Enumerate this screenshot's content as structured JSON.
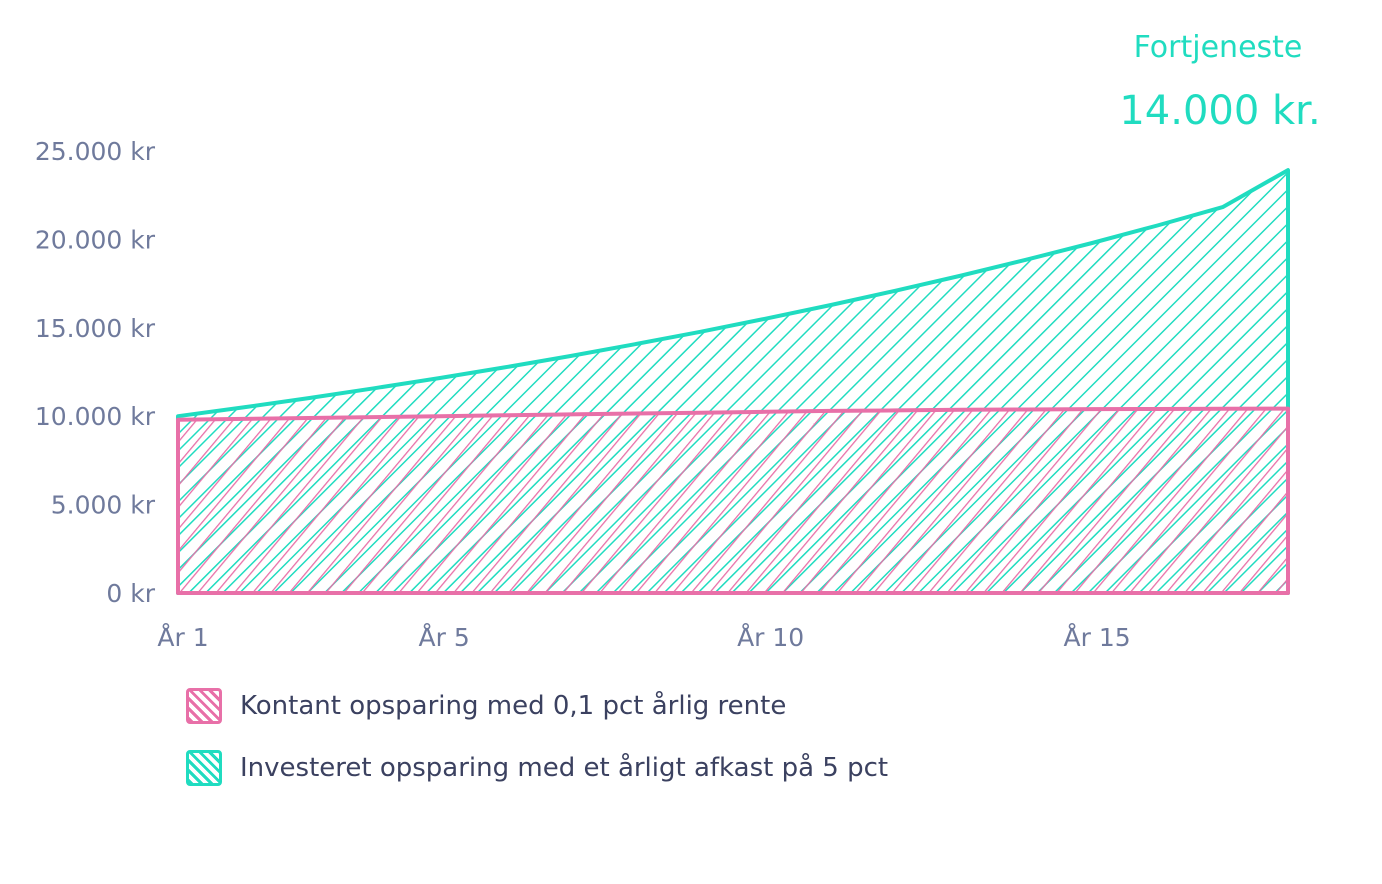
{
  "chart_data": {
    "type": "area",
    "x": [
      1,
      2,
      3,
      4,
      5,
      6,
      7,
      8,
      9,
      10,
      11,
      12,
      13,
      14,
      15,
      16,
      17,
      18
    ],
    "x_tick_labels": [
      {
        "x": 1,
        "label": "År 1"
      },
      {
        "x": 5,
        "label": "År 5"
      },
      {
        "x": 10,
        "label": "År 10"
      },
      {
        "x": 15,
        "label": "År 15"
      }
    ],
    "y_tick_labels": [
      "0 kr",
      "5.000 kr",
      "10.000 kr",
      "15.000 kr",
      "20.000 kr",
      "25.000 kr"
    ],
    "y_ticks": [
      0,
      5000,
      10000,
      15000,
      20000,
      25000
    ],
    "ylim": [
      0,
      25000
    ],
    "series": [
      {
        "name": "Investeret opsparing med et årligt afkast på 5 pct",
        "color": "#20dcc0",
        "values": [
          10000,
          10500,
          11025,
          11576,
          12155,
          12763,
          13401,
          14071,
          14775,
          15513,
          16289,
          17103,
          17959,
          18856,
          19799,
          20789,
          21829,
          23920
        ]
      },
      {
        "name": "Kontant opsparing med 0,1 pct årlig rente",
        "color": "#e870a8",
        "values": [
          9800,
          9850,
          9900,
          9950,
          10000,
          10050,
          10100,
          10150,
          10200,
          10250,
          10300,
          10330,
          10360,
          10380,
          10400,
          10410,
          10420,
          10430
        ]
      }
    ],
    "annotation": {
      "title": "Fortjeneste",
      "value": "14.000 kr."
    },
    "grid": false,
    "legend_position": "bottom-left"
  }
}
